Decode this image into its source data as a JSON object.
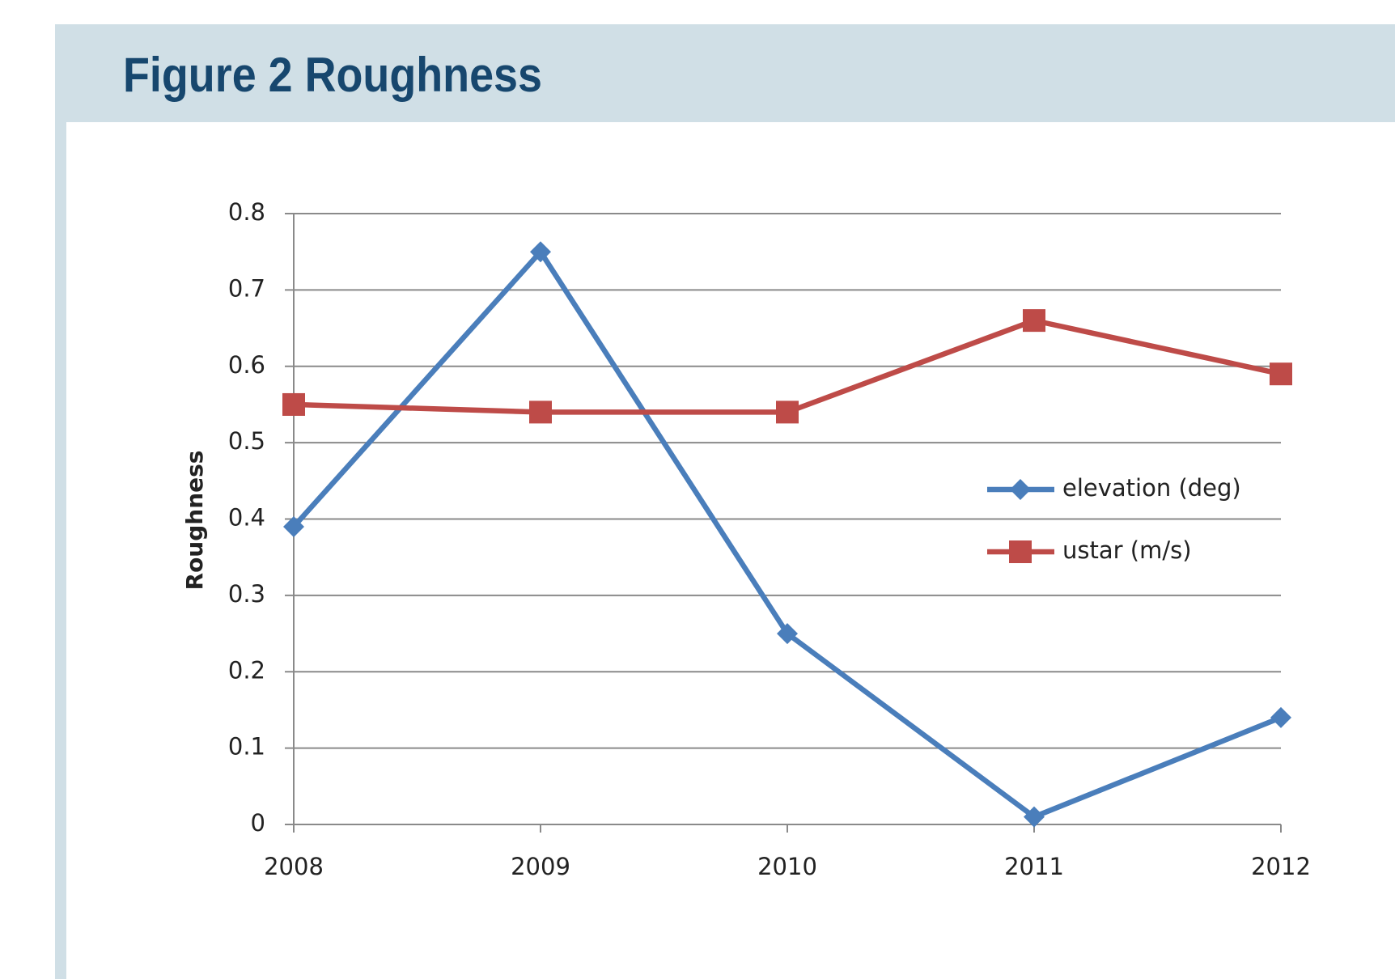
{
  "chart_data": {
    "type": "line",
    "title": "Figure 2 Roughness",
    "y_label": "Roughness",
    "categories": [
      "2008",
      "2009",
      "2010",
      "2011",
      "2012"
    ],
    "series": [
      {
        "name": "elevation (deg)",
        "color": "#4a7ebb",
        "marker": "diamond",
        "values": [
          0.39,
          0.75,
          0.25,
          0.01,
          0.14
        ]
      },
      {
        "name": "ustar (m/s)",
        "color": "#be4b48",
        "marker": "square",
        "values": [
          0.55,
          0.54,
          0.54,
          0.66,
          0.59
        ]
      }
    ],
    "ylim": [
      0,
      0.8
    ],
    "yticks": [
      0,
      0.1,
      0.2,
      0.3,
      0.4,
      0.5,
      0.6,
      0.7,
      0.8
    ],
    "grid": true,
    "legend": "right"
  }
}
